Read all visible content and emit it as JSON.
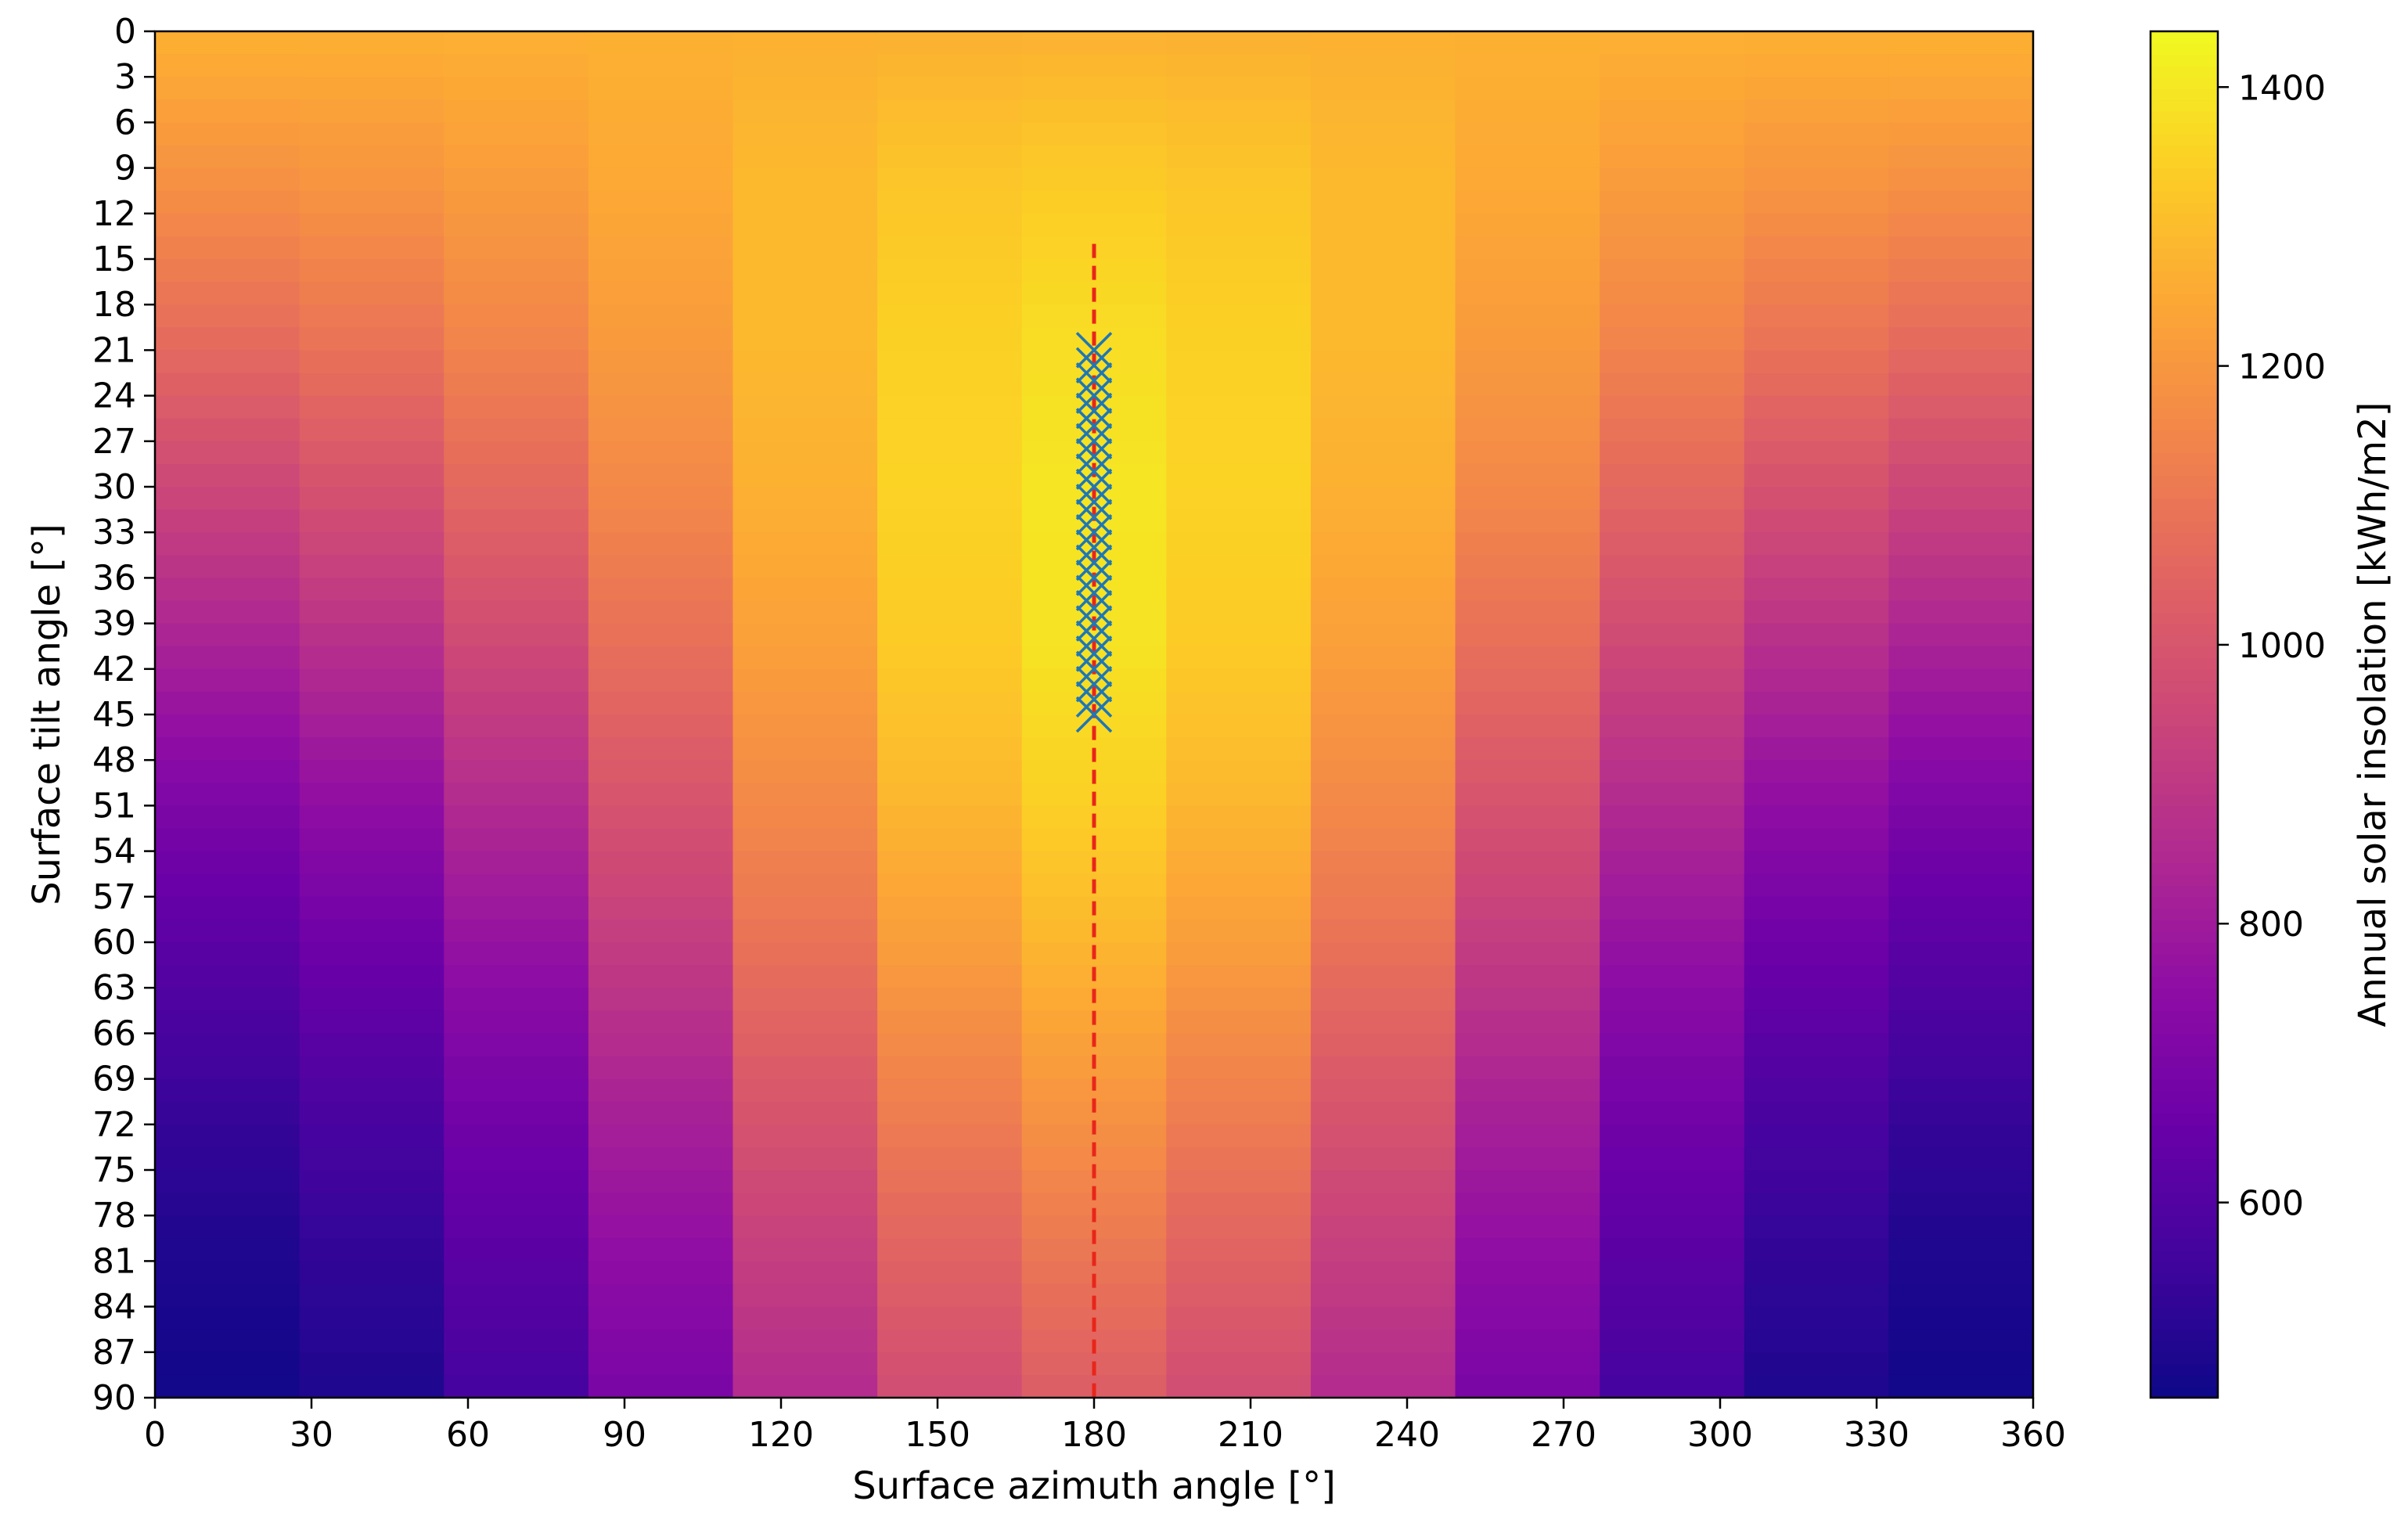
{
  "chart_data": {
    "type": "heatmap",
    "title": "",
    "xlabel": "Surface azimuth angle [°]",
    "ylabel": "Surface tilt angle [°]",
    "colorbar_label": "Annual solar insolation [kWh/m2]",
    "colormap": "plasma",
    "xlim": [
      0,
      360
    ],
    "ylim": [
      90,
      0
    ],
    "x_ticks": [
      "0",
      "30",
      "60",
      "90",
      "120",
      "150",
      "180",
      "210",
      "240",
      "270",
      "300",
      "330",
      "360"
    ],
    "y_ticks": [
      "0",
      "3",
      "6",
      "9",
      "12",
      "15",
      "18",
      "21",
      "24",
      "27",
      "30",
      "33",
      "36",
      "39",
      "42",
      "45",
      "48",
      "51",
      "54",
      "57",
      "60",
      "63",
      "66",
      "69",
      "72",
      "75",
      "78",
      "81",
      "84",
      "87",
      "90"
    ],
    "colorbar_ticks": [
      "600",
      "800",
      "1000",
      "1200",
      "1400"
    ],
    "colorbar_range": [
      460,
      1440
    ],
    "x": [
      0,
      30,
      60,
      90,
      120,
      150,
      180,
      210,
      240,
      270,
      300,
      330,
      360
    ],
    "y": [
      0,
      10,
      20,
      30,
      40,
      50,
      60,
      70,
      80,
      90
    ],
    "values": [
      [
        1270,
        1270,
        1270,
        1270,
        1270,
        1270,
        1270,
        1270,
        1270,
        1270,
        1270,
        1270,
        1270
      ],
      [
        1180,
        1185,
        1205,
        1240,
        1285,
        1320,
        1335,
        1320,
        1285,
        1240,
        1205,
        1185,
        1180
      ],
      [
        1065,
        1085,
        1130,
        1195,
        1280,
        1345,
        1375,
        1345,
        1280,
        1195,
        1130,
        1085,
        1065
      ],
      [
        940,
        965,
        1030,
        1130,
        1255,
        1350,
        1395,
        1350,
        1255,
        1130,
        1030,
        965,
        940
      ],
      [
        820,
        845,
        925,
        1050,
        1210,
        1330,
        1390,
        1330,
        1210,
        1050,
        925,
        845,
        820
      ],
      [
        705,
        730,
        820,
        960,
        1145,
        1285,
        1350,
        1285,
        1145,
        960,
        820,
        730,
        705
      ],
      [
        610,
        630,
        725,
        870,
        1070,
        1215,
        1285,
        1215,
        1070,
        870,
        725,
        630,
        610
      ],
      [
        540,
        555,
        645,
        785,
        985,
        1130,
        1200,
        1130,
        985,
        785,
        645,
        555,
        540
      ],
      [
        490,
        500,
        580,
        715,
        905,
        1045,
        1110,
        1045,
        905,
        715,
        580,
        500,
        490
      ],
      [
        465,
        470,
        530,
        655,
        835,
        965,
        1025,
        965,
        835,
        655,
        530,
        470,
        465
      ]
    ],
    "optimum_azimuth_line": 180,
    "optimum_markers": {
      "marker": "x",
      "color": "#1f77b4",
      "azimuth": 180,
      "tilts": [
        21,
        22,
        23,
        24,
        25,
        26,
        27,
        28,
        29,
        30,
        31,
        32,
        33,
        34,
        35,
        36,
        37,
        38,
        39,
        40,
        41,
        42,
        43,
        44,
        45
      ]
    },
    "guide_line": {
      "x": 180,
      "y_from": 14,
      "y_to": 90,
      "color": "#e8261a",
      "style": "dashed"
    },
    "grid": false
  }
}
